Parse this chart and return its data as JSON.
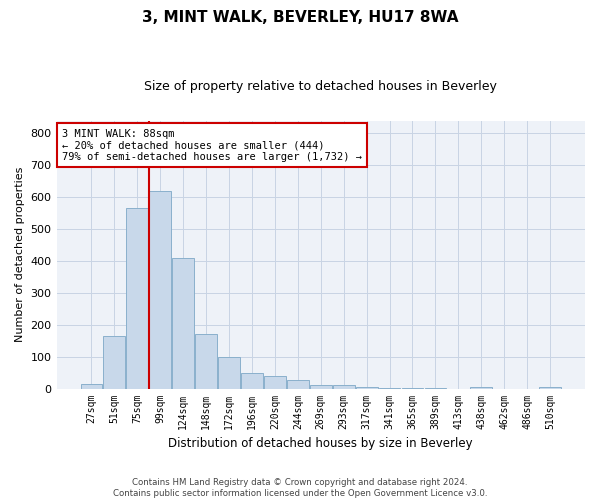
{
  "title": "3, MINT WALK, BEVERLEY, HU17 8WA",
  "subtitle": "Size of property relative to detached houses in Beverley",
  "xlabel": "Distribution of detached houses by size in Beverley",
  "ylabel": "Number of detached properties",
  "categories": [
    "27sqm",
    "51sqm",
    "75sqm",
    "99sqm",
    "124sqm",
    "148sqm",
    "172sqm",
    "196sqm",
    "220sqm",
    "244sqm",
    "269sqm",
    "293sqm",
    "317sqm",
    "341sqm",
    "365sqm",
    "389sqm",
    "413sqm",
    "438sqm",
    "462sqm",
    "486sqm",
    "510sqm"
  ],
  "bar_values": [
    15,
    165,
    565,
    620,
    410,
    170,
    100,
    50,
    38,
    28,
    12,
    10,
    6,
    3,
    1,
    1,
    0,
    5,
    0,
    0,
    5
  ],
  "bar_color": "#c8d8ea",
  "bar_edge_color": "#8ab0cc",
  "vline_color": "#cc0000",
  "vline_pos": 2.5,
  "annotation_text": "3 MINT WALK: 88sqm\n← 20% of detached houses are smaller (444)\n79% of semi-detached houses are larger (1,732) →",
  "annotation_box_facecolor": "#ffffff",
  "annotation_box_edgecolor": "#cc0000",
  "ylim": [
    0,
    840
  ],
  "yticks": [
    0,
    100,
    200,
    300,
    400,
    500,
    600,
    700,
    800
  ],
  "grid_color": "#c8d4e4",
  "background_color": "#eef2f8",
  "footer_line1": "Contains HM Land Registry data © Crown copyright and database right 2024.",
  "footer_line2": "Contains public sector information licensed under the Open Government Licence v3.0."
}
